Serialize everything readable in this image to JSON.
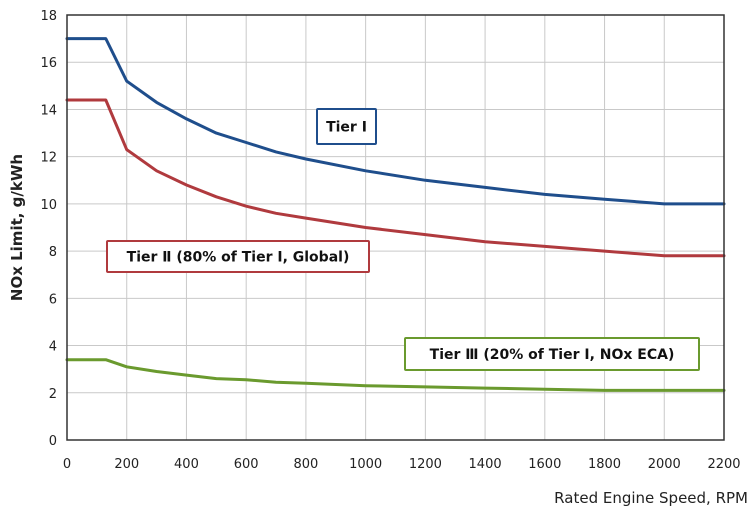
{
  "chart_data": {
    "type": "line",
    "title": "",
    "xlabel": "Rated Engine Speed, RPM",
    "ylabel": "NOx Limit, g/kWh",
    "xlim": [
      0,
      2200
    ],
    "ylim": [
      0,
      18
    ],
    "xticks": [
      "0",
      "200",
      "400",
      "600",
      "800",
      "1000",
      "1200",
      "1400",
      "1600",
      "1800",
      "2000",
      "2200"
    ],
    "yticks": [
      "0",
      "2",
      "4",
      "6",
      "8",
      "10",
      "12",
      "14",
      "16",
      "18"
    ],
    "grid": true,
    "series": [
      {
        "name": "Tier I",
        "color": "#1f4e8c",
        "x": [
          0,
          130,
          200,
          300,
          400,
          500,
          600,
          700,
          800,
          1000,
          1200,
          1400,
          1600,
          1800,
          2000,
          2200
        ],
        "y": [
          17.0,
          17.0,
          15.2,
          14.3,
          13.6,
          13.0,
          12.6,
          12.2,
          11.9,
          11.4,
          11.0,
          10.7,
          10.4,
          10.2,
          10.0,
          10.0
        ]
      },
      {
        "name": "Tier II (80% of Tier I, Global)",
        "color": "#b03a3e",
        "x": [
          0,
          130,
          200,
          300,
          400,
          500,
          600,
          700,
          800,
          1000,
          1200,
          1400,
          1600,
          1800,
          2000,
          2200
        ],
        "y": [
          14.4,
          14.4,
          12.3,
          11.4,
          10.8,
          10.3,
          9.9,
          9.6,
          9.4,
          9.0,
          8.7,
          8.4,
          8.2,
          8.0,
          7.8,
          7.8
        ]
      },
      {
        "name": "Tier III (20% of Tier I, NOx ECA)",
        "color": "#6a9a2e",
        "x": [
          0,
          130,
          200,
          300,
          400,
          500,
          600,
          700,
          800,
          1000,
          1200,
          1400,
          1600,
          1800,
          2000,
          2200
        ],
        "y": [
          3.4,
          3.4,
          3.1,
          2.9,
          2.75,
          2.6,
          2.55,
          2.45,
          2.4,
          2.3,
          2.25,
          2.2,
          2.15,
          2.1,
          2.1,
          2.1
        ]
      }
    ],
    "annotations": [
      {
        "text": "Tier I",
        "series": 0
      },
      {
        "text": "Tier Ⅱ (80% of Tier I, Global)",
        "series": 1
      },
      {
        "text": "Tier Ⅲ (20% of Tier I, NOx ECA)",
        "series": 2
      }
    ]
  }
}
